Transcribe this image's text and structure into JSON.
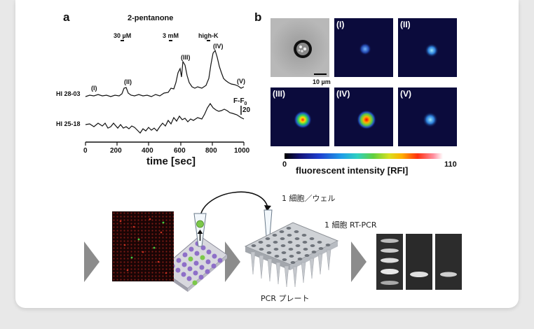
{
  "panel_a": {
    "letter": "a",
    "stimulus": "2-pentanone",
    "dose1": "30 µM",
    "dose2": "3 mM",
    "dose3": "high-K",
    "peaks": [
      "(I)",
      "(II)",
      "(III)",
      "(IV)",
      "(V)"
    ],
    "trace1": "HI 28-03",
    "trace2": "HI 25-18",
    "scale_label": "F-F",
    "scale_sub": "0",
    "scale_value": "20",
    "x_ticks": [
      "0",
      "200",
      "400",
      "600",
      "800",
      "1000"
    ],
    "x_label": "time [sec]"
  },
  "panel_b": {
    "letter": "b",
    "tile_labels": [
      "(I)",
      "(II)",
      "(III)",
      "(IV)",
      "(V)"
    ],
    "scalebar": "10 µm",
    "cb_min": "0",
    "cb_max": "110",
    "cb_label": "fluorescent intensity [RFI]"
  },
  "workflow": {
    "step1": "1 細胞／ウェル",
    "step2": "1 細胞 RT-PCR",
    "plate": "PCR プレート"
  }
}
